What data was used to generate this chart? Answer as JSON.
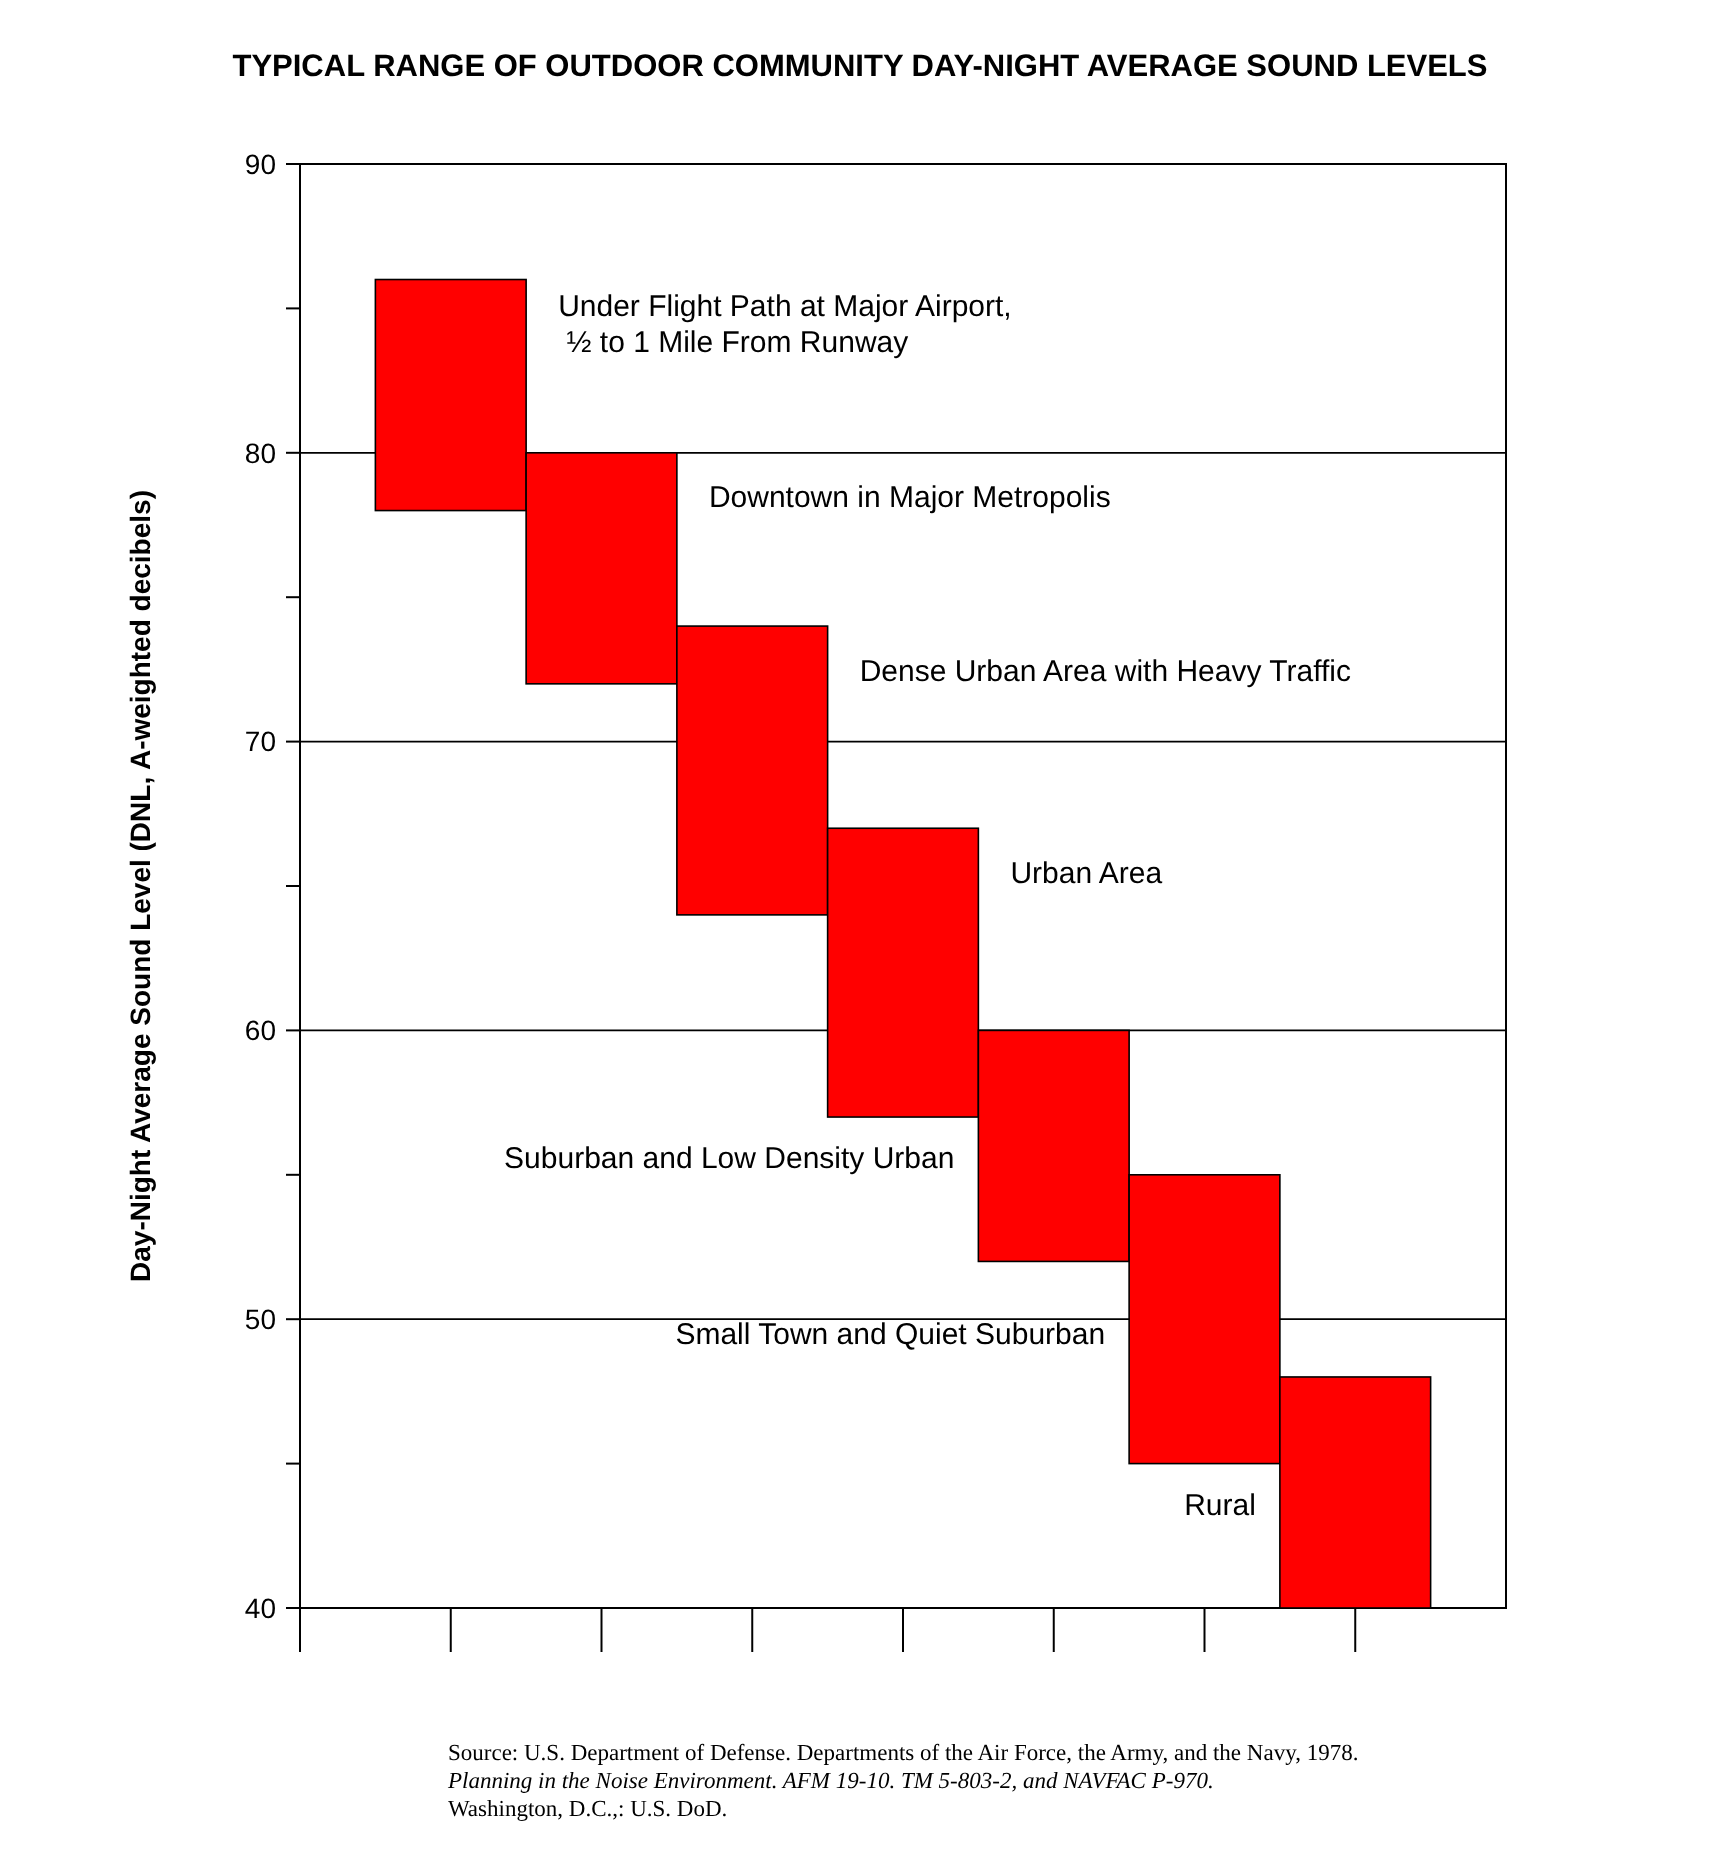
{
  "chart_data": {
    "type": "bar",
    "title": "TYPICAL RANGE OF OUTDOOR COMMUNITY DAY-NIGHT AVERAGE SOUND LEVELS",
    "ylabel": "Day-Night Average Sound Level (DNL, A-weighted decibels)",
    "categories": [
      null,
      null,
      null,
      null,
      null,
      null,
      null
    ],
    "base": [
      78,
      72,
      64,
      57,
      52,
      45,
      40
    ],
    "values": [
      8,
      8,
      10,
      10,
      8,
      10,
      8
    ],
    "color": "#ff0000",
    "ylim": [
      40,
      90
    ],
    "yticks": [
      40,
      {
        "value": 45,
        "label": null
      },
      50,
      {
        "value": 55,
        "label": null
      },
      60,
      {
        "value": 65,
        "label": null
      },
      70,
      {
        "value": 75,
        "label": null
      },
      80,
      {
        "value": 85,
        "label": null
      },
      90
    ],
    "grid": "y",
    "annotations": [
      "Under Flight Path at Major Airport,\n ½ to 1 Mile From Runway",
      "Downtown in Major Metropolis",
      "Dense Urban Area with Heavy Traffic",
      "Urban Area",
      "Suburban and Low Density Urban",
      "Small Town and Quiet Suburban",
      "Rural",
      "Source: U.S. Department of Defense.  Departments of the Air Force, the Army, and the Navy, 1978.",
      "Planning in the Noise Environment.  AFM 19-10.  TM 5-803-2, and NAVFAC P-970.",
      "Washington, D.C.,: U.S. DoD."
    ]
  }
}
